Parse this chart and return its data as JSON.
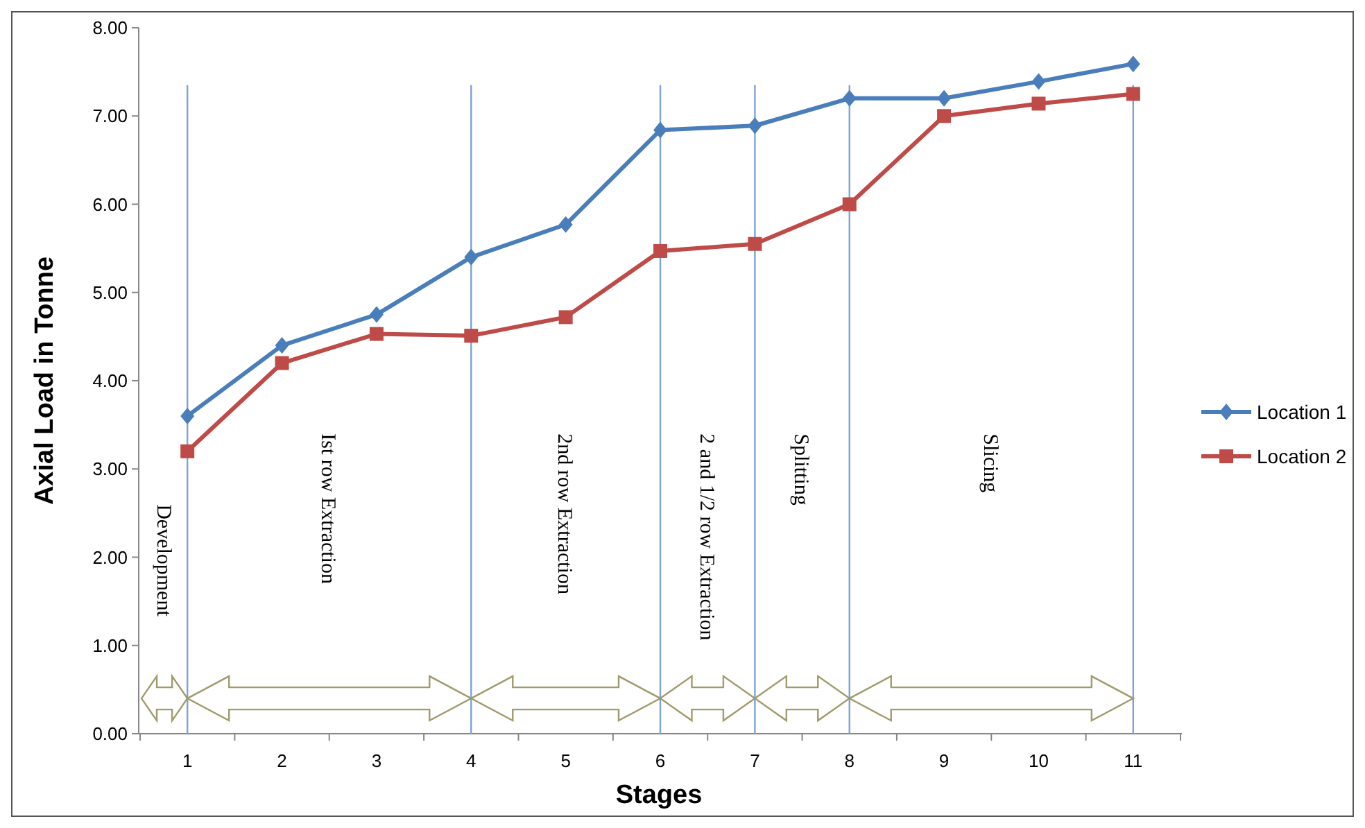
{
  "chart_data": {
    "type": "line",
    "xlabel": "Stages",
    "ylabel": "Axial Load in Tonne",
    "categories": [
      "1",
      "2",
      "3",
      "4",
      "5",
      "6",
      "7",
      "8",
      "9",
      "10",
      "11"
    ],
    "series": [
      {
        "name": "Location 1",
        "color": "#4a7ebb",
        "marker": "diamond",
        "values": [
          3.6,
          4.4,
          4.75,
          5.4,
          5.77,
          6.84,
          6.89,
          7.2,
          7.2,
          7.39,
          7.59
        ]
      },
      {
        "name": "Location 2",
        "color": "#be4b48",
        "marker": "square",
        "values": [
          3.2,
          4.2,
          4.53,
          4.51,
          4.72,
          5.47,
          5.55,
          6.0,
          7.0,
          7.14,
          7.25
        ]
      }
    ],
    "ylim": [
      0,
      8
    ],
    "yticks": [
      {
        "value": 0,
        "label": "0.00"
      },
      {
        "value": 1,
        "label": "1.00"
      },
      {
        "value": 2,
        "label": "2.00"
      },
      {
        "value": 3,
        "label": "3.00"
      },
      {
        "value": 4,
        "label": "4.00"
      },
      {
        "value": 5,
        "label": "5.00"
      },
      {
        "value": 6,
        "label": "6.00"
      },
      {
        "value": 7,
        "label": "7.00"
      },
      {
        "value": 8,
        "label": "8.00"
      }
    ],
    "ref_lines": [
      {
        "axis": "x",
        "value": "1",
        "color": "#7ea2d4"
      },
      {
        "axis": "x",
        "value": "4",
        "color": "#7ea2d4"
      },
      {
        "axis": "x",
        "value": "6",
        "color": "#7ea2d4"
      },
      {
        "axis": "x",
        "value": "7",
        "color": "#7ea2d4"
      },
      {
        "axis": "x",
        "value": "8",
        "color": "#7ea2d4"
      },
      {
        "axis": "x",
        "value": "11",
        "color": "#7ea2d4"
      }
    ],
    "annotations": [
      "Development",
      "Ist row Extraction",
      "2nd row Extraction",
      "2 and 1/2 row Extraction",
      "Splitting",
      "Slicing"
    ],
    "grid": false,
    "legend": "right",
    "line_style": "solid"
  }
}
